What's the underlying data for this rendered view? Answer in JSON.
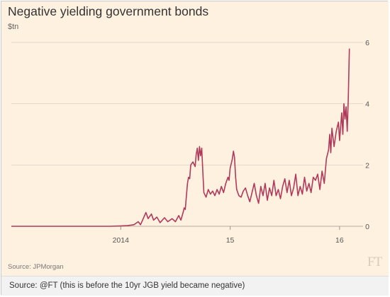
{
  "chart_data": {
    "type": "line",
    "title": "Negative yielding government bonds",
    "ylabel": "$tn",
    "xlabel": "",
    "x_tick_labels": [
      {
        "label": "2014",
        "x": 2014.0
      },
      {
        "label": "15",
        "x": 2015.0
      },
      {
        "label": "16",
        "x": 2016.0
      }
    ],
    "y_ticks": [
      0,
      2,
      4,
      6
    ],
    "xlim": [
      2013.0,
      2016.15
    ],
    "ylim": [
      0,
      6
    ],
    "y_axis_side": "right",
    "grid": true,
    "legend": "none",
    "series": [
      {
        "color": "#b03a5b",
        "points": [
          [
            2013.0,
            0.0
          ],
          [
            2013.9,
            0.0
          ],
          [
            2013.99,
            0.01
          ],
          [
            2014.06,
            0.02
          ],
          [
            2014.12,
            0.05
          ],
          [
            2014.16,
            0.15
          ],
          [
            2014.18,
            0.05
          ],
          [
            2014.2,
            0.2
          ],
          [
            2014.23,
            0.45
          ],
          [
            2014.25,
            0.25
          ],
          [
            2014.28,
            0.4
          ],
          [
            2014.3,
            0.2
          ],
          [
            2014.33,
            0.3
          ],
          [
            2014.36,
            0.12
          ],
          [
            2014.4,
            0.28
          ],
          [
            2014.43,
            0.15
          ],
          [
            2014.47,
            0.25
          ],
          [
            2014.5,
            0.15
          ],
          [
            2014.53,
            0.35
          ],
          [
            2014.55,
            0.2
          ],
          [
            2014.57,
            0.45
          ],
          [
            2014.58,
            0.6
          ],
          [
            2014.59,
            0.55
          ],
          [
            2014.6,
            1.0
          ],
          [
            2014.61,
            1.4
          ],
          [
            2014.62,
            1.6
          ],
          [
            2014.63,
            1.55
          ],
          [
            2014.64,
            2.0
          ],
          [
            2014.66,
            2.1
          ],
          [
            2014.68,
            1.95
          ],
          [
            2014.69,
            2.35
          ],
          [
            2014.7,
            2.55
          ],
          [
            2014.71,
            2.15
          ],
          [
            2014.72,
            2.6
          ],
          [
            2014.73,
            2.3
          ],
          [
            2014.74,
            2.55
          ],
          [
            2014.75,
            1.8
          ],
          [
            2014.76,
            1.1
          ],
          [
            2014.78,
            0.95
          ],
          [
            2014.8,
            1.2
          ],
          [
            2014.82,
            1.05
          ],
          [
            2014.84,
            1.15
          ],
          [
            2014.86,
            1.0
          ],
          [
            2014.88,
            1.2
          ],
          [
            2014.9,
            1.05
          ],
          [
            2014.92,
            1.3
          ],
          [
            2014.94,
            1.1
          ],
          [
            2014.96,
            1.4
          ],
          [
            2014.98,
            1.6
          ],
          [
            2014.99,
            1.5
          ],
          [
            2015.0,
            1.9
          ],
          [
            2015.02,
            2.2
          ],
          [
            2015.03,
            2.45
          ],
          [
            2015.04,
            2.25
          ],
          [
            2015.05,
            1.6
          ],
          [
            2015.06,
            1.2
          ],
          [
            2015.08,
            1.0
          ],
          [
            2015.1,
            0.95
          ],
          [
            2015.12,
            1.15
          ],
          [
            2015.14,
            1.25
          ],
          [
            2015.16,
            1.0
          ],
          [
            2015.18,
            0.8
          ],
          [
            2015.2,
            1.1
          ],
          [
            2015.22,
            1.4
          ],
          [
            2015.24,
            1.0
          ],
          [
            2015.26,
            0.75
          ],
          [
            2015.28,
            1.3
          ],
          [
            2015.3,
            1.0
          ],
          [
            2015.32,
            1.4
          ],
          [
            2015.34,
            0.85
          ],
          [
            2015.36,
            1.25
          ],
          [
            2015.38,
            1.0
          ],
          [
            2015.4,
            1.5
          ],
          [
            2015.42,
            1.0
          ],
          [
            2015.44,
            1.2
          ],
          [
            2015.46,
            0.9
          ],
          [
            2015.48,
            1.3
          ],
          [
            2015.5,
            1.55
          ],
          [
            2015.52,
            1.1
          ],
          [
            2015.54,
            1.5
          ],
          [
            2015.56,
            1.0
          ],
          [
            2015.58,
            1.25
          ],
          [
            2015.6,
            1.7
          ],
          [
            2015.62,
            1.0
          ],
          [
            2015.64,
            1.3
          ],
          [
            2015.66,
            1.05
          ],
          [
            2015.68,
            1.6
          ],
          [
            2015.7,
            1.15
          ],
          [
            2015.72,
            1.4
          ],
          [
            2015.74,
            1.1
          ],
          [
            2015.76,
            1.6
          ],
          [
            2015.78,
            1.5
          ],
          [
            2015.8,
            1.7
          ],
          [
            2015.82,
            1.2
          ],
          [
            2015.84,
            1.8
          ],
          [
            2015.86,
            1.4
          ],
          [
            2015.88,
            2.2
          ],
          [
            2015.9,
            2.5
          ],
          [
            2015.91,
            3.0
          ],
          [
            2015.92,
            2.4
          ],
          [
            2015.93,
            3.2
          ],
          [
            2015.95,
            2.6
          ],
          [
            2015.97,
            3.1
          ],
          [
            2015.99,
            3.4
          ],
          [
            2016.0,
            2.8
          ],
          [
            2016.02,
            3.7
          ],
          [
            2016.03,
            3.0
          ],
          [
            2016.04,
            4.0
          ],
          [
            2016.05,
            3.5
          ],
          [
            2016.06,
            3.9
          ],
          [
            2016.07,
            3.1
          ],
          [
            2016.08,
            4.2
          ],
          [
            2016.09,
            5.8
          ]
        ]
      }
    ]
  },
  "source_note": "Source: JPMorgan",
  "logo_text": "FT",
  "caption": "Source: @FT (this is before the 10yr JGB yield became negative)"
}
